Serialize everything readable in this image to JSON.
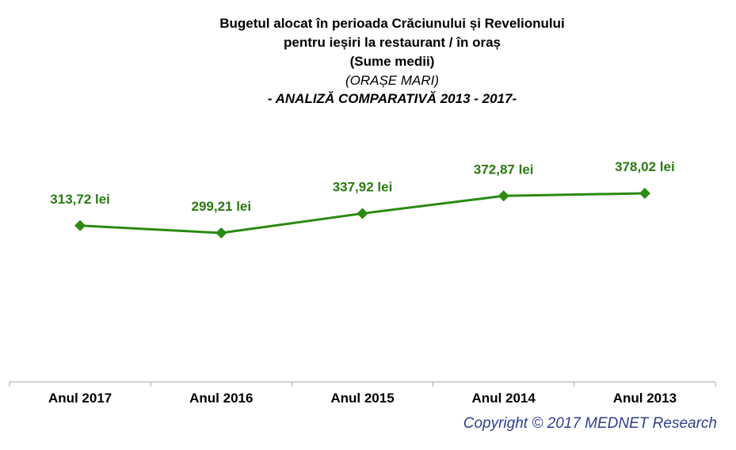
{
  "title": {
    "line1": "Bugetul alocat în perioada Crăciunului și Revelionului",
    "line2": "pentru ieșiri la restaurant / în oraș",
    "line3": "(Sume medii)",
    "line4": "(ORAȘE MARI)",
    "line5": "- ANALIZĂ COMPARATIVĂ 2013 - 2017-"
  },
  "copyright": "Copyright ©  2017 MEDNET Research",
  "colors": {
    "line": "#2a8a12",
    "label": "#2a7a12",
    "axis": "#a6a6a6"
  },
  "chart_data": {
    "type": "line",
    "categories": [
      "Anul 2017",
      "Anul 2016",
      "Anul 2015",
      "Anul 2014",
      "Anul 2013"
    ],
    "values": [
      313.72,
      299.21,
      337.92,
      372.87,
      378.02
    ],
    "data_labels": [
      "313,72 lei",
      "299,21 lei",
      "337,92 lei",
      "372,87 lei",
      "378,02 lei"
    ],
    "marker": "diamond",
    "grid": false,
    "legend": "none"
  }
}
